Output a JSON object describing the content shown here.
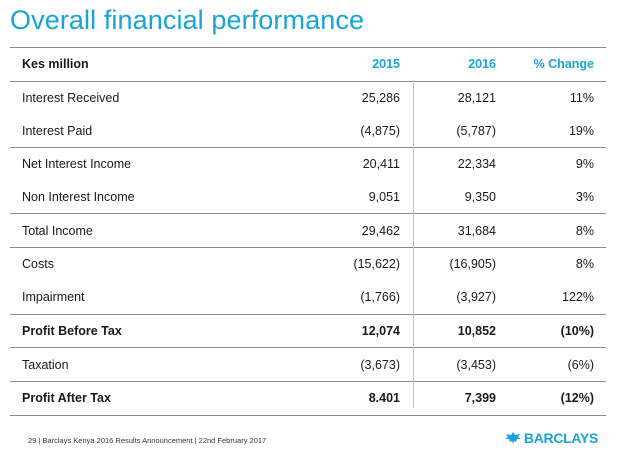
{
  "title": "Overall financial performance",
  "table": {
    "columns": [
      "Kes million",
      "2015",
      "2016",
      "% Change"
    ],
    "rows": [
      {
        "label": "Interest Received",
        "v2015": "25,286",
        "v2016": "28,121",
        "change": "11%"
      },
      {
        "label": "Interest Paid",
        "v2015": "(4,875)",
        "v2016": "(5,787)",
        "change": "19%"
      },
      {
        "label": "Net Interest Income",
        "v2015": "20,411",
        "v2016": "22,334",
        "change": "9%"
      },
      {
        "label": "Non Interest Income",
        "v2015": "9,051",
        "v2016": "9,350",
        "change": "3%"
      },
      {
        "label": "Total Income",
        "v2015": "29,462",
        "v2016": "31,684",
        "change": "8%"
      },
      {
        "label": "Costs",
        "v2015": "(15,622)",
        "v2016": "(16,905)",
        "change": "8%"
      },
      {
        "label": "Impairment",
        "v2015": "(1,766)",
        "v2016": "(3,927)",
        "change": "122%"
      },
      {
        "label": "Profit Before Tax",
        "v2015": "12,074",
        "v2016": "10,852",
        "change": "(10%)"
      },
      {
        "label": "Taxation",
        "v2015": "(3,673)",
        "v2016": "(3,453)",
        "change": "(6%)"
      },
      {
        "label": "Profit After Tax",
        "v2015": "8.401",
        "v2016": "7,399",
        "change": "(12%)"
      }
    ]
  },
  "footer": {
    "text": "29  |  Barclays Kenya 2016 Results Announcement | 22nd  February 2017",
    "logo_text": "BARCLAYS",
    "logo_icon": "eagle-icon"
  },
  "colors": {
    "accent": "#1aa3d9",
    "rule": "#8a8a8a"
  }
}
